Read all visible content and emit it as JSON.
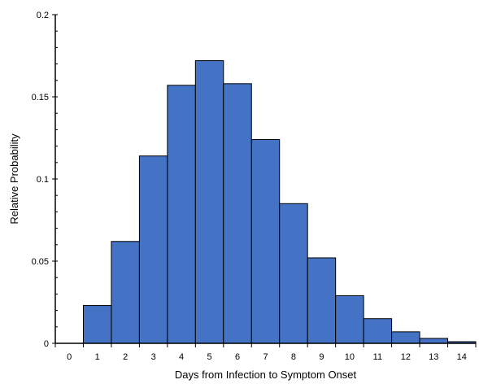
{
  "chart_data": {
    "type": "bar",
    "title": "",
    "xlabel": "Days from Infection to Symptom Onset",
    "ylabel": "Relative Probability",
    "x_ticks": [
      "0",
      "1",
      "2",
      "3",
      "4",
      "5",
      "6",
      "7",
      "8",
      "9",
      "10",
      "11",
      "12",
      "13",
      "14"
    ],
    "y_ticks": [
      "0",
      "0.05",
      "0.1",
      "0.15",
      "0.2"
    ],
    "xlim": [
      -0.5,
      14.5
    ],
    "ylim": [
      0,
      0.2
    ],
    "grid": false,
    "legend": "none",
    "bar_color": "#4472C4",
    "bar_edge_color": "#000000",
    "bars": [
      {
        "from": 0.5,
        "to": 1.5,
        "value": 0.023
      },
      {
        "from": 1.5,
        "to": 2.5,
        "value": 0.062
      },
      {
        "from": 2.5,
        "to": 3.5,
        "value": 0.114
      },
      {
        "from": 3.5,
        "to": 4.5,
        "value": 0.157
      },
      {
        "from": 4.5,
        "to": 5.5,
        "value": 0.172
      },
      {
        "from": 5.5,
        "to": 6.5,
        "value": 0.158
      },
      {
        "from": 6.5,
        "to": 7.5,
        "value": 0.124
      },
      {
        "from": 7.5,
        "to": 8.5,
        "value": 0.085
      },
      {
        "from": 8.5,
        "to": 9.5,
        "value": 0.052
      },
      {
        "from": 9.5,
        "to": 10.5,
        "value": 0.029
      },
      {
        "from": 10.5,
        "to": 11.5,
        "value": 0.015
      },
      {
        "from": 11.5,
        "to": 12.5,
        "value": 0.007
      },
      {
        "from": 12.5,
        "to": 13.5,
        "value": 0.003
      },
      {
        "from": 13.5,
        "to": 14.5,
        "value": 0.001
      }
    ]
  }
}
